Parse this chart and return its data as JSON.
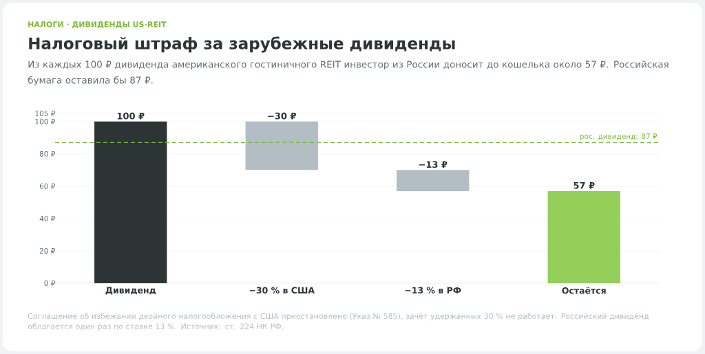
{
  "chart_data": {
    "type": "bar",
    "title": "Налоговый штраф за зарубежные дивиденды",
    "subtitle": "Из каждых 100 ₽ дивиденда американского гостиничного REIT инвестор из России доносит до кошелька около 57 ₽. Российская бумага оставила бы 87 ₽.",
    "annotations": [
      "НАЛОГИ · ДИВИДЕНДЫ US-REIT",
      "Соглашение об избежании двойного налогообложения с США приостановлено (Указ № 585), зачёт удержанных 30 % не работает. Российский дивиденд облагается один раз по ставке 13 %. Источник: ст. 224 НК РФ."
    ],
    "categories": [
      "Дивиденд",
      "−30 % в США",
      "−13 % в РФ",
      "Остаётся"
    ],
    "values": [
      100,
      -30,
      -13,
      57
    ],
    "base": [
      0,
      100,
      70,
      0
    ],
    "colors": [
      "#2d3436",
      "#b2bec3",
      "#b2bec3",
      "#94cf5a"
    ],
    "value_labels": [
      "100 ₽",
      "−30 ₽",
      "−13 ₽",
      "57 ₽"
    ],
    "ylim": [
      0,
      105
    ],
    "yticks": [
      {
        "value": 0,
        "label": "0 ₽"
      },
      {
        "value": 20,
        "label": "20 ₽"
      },
      {
        "value": 40,
        "label": "40 ₽"
      },
      {
        "value": 60,
        "label": "60 ₽"
      },
      {
        "value": 80,
        "label": "80 ₽"
      },
      {
        "value": 100,
        "label": "100 ₽"
      },
      {
        "value": 105,
        "label": "105 ₽"
      }
    ],
    "grid": "y",
    "ref_lines": [
      {
        "axis": "y",
        "value": 87,
        "label": "рос. дивиденд: 87 ₽",
        "color": "#7dbb3a",
        "line_style": "dashed"
      }
    ]
  }
}
